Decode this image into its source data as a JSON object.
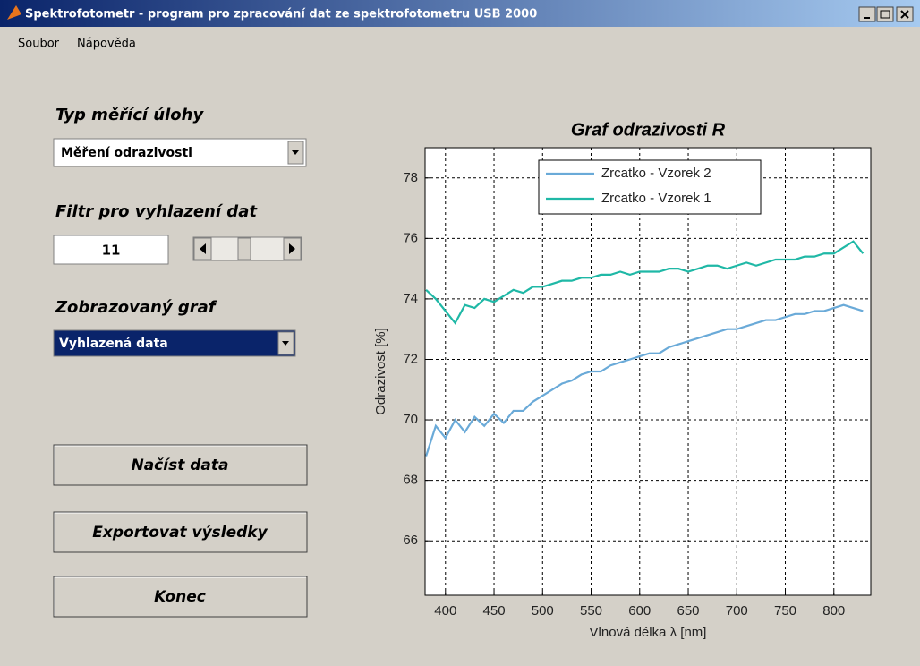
{
  "window": {
    "title": "Spektrofotometr - program pro zpracování dat ze spektrofotometru USB 2000"
  },
  "menu": [
    "Soubor",
    "Nápověda"
  ],
  "controls": {
    "task_label": "Typ měřící úlohy",
    "task_value": "Měření odrazivosti",
    "filter_label": "Filtr pro vyhlazení dat",
    "filter_value": "11",
    "graph_label": "Zobrazovaný graf",
    "graph_value": "Vyhlazená data",
    "buttons": [
      "Načíst data",
      "Exportovat výsledky",
      "Konec"
    ]
  },
  "chart_data": {
    "type": "line",
    "title": "Graf odrazivosti R",
    "x_label": "Vlnová délka λ [nm]",
    "y_label": "Odrazivost [%]",
    "x": [
      380,
      390,
      400,
      410,
      420,
      430,
      440,
      450,
      460,
      470,
      480,
      490,
      500,
      510,
      520,
      530,
      540,
      550,
      560,
      570,
      580,
      590,
      600,
      610,
      620,
      630,
      640,
      650,
      660,
      670,
      680,
      690,
      700,
      710,
      720,
      730,
      740,
      750,
      760,
      770,
      780,
      790,
      800,
      810,
      820,
      830
    ],
    "series": [
      {
        "name": "Zrcatko - Vzorek 2",
        "color": "#6aaad8",
        "values": [
          68.8,
          69.8,
          69.4,
          70.0,
          69.6,
          70.1,
          69.8,
          70.2,
          69.9,
          70.3,
          70.3,
          70.6,
          70.8,
          71.0,
          71.2,
          71.3,
          71.5,
          71.6,
          71.6,
          71.8,
          71.9,
          72.0,
          72.1,
          72.2,
          72.2,
          72.4,
          72.5,
          72.6,
          72.7,
          72.8,
          72.9,
          73.0,
          73.0,
          73.1,
          73.2,
          73.3,
          73.3,
          73.4,
          73.5,
          73.5,
          73.6,
          73.6,
          73.7,
          73.8,
          73.7,
          73.6
        ]
      },
      {
        "name": "Zrcatko - Vzorek 1",
        "color": "#1fb8a6",
        "values": [
          74.3,
          74.0,
          73.6,
          73.2,
          73.8,
          73.7,
          74.0,
          73.9,
          74.1,
          74.3,
          74.2,
          74.4,
          74.4,
          74.5,
          74.6,
          74.6,
          74.7,
          74.7,
          74.8,
          74.8,
          74.9,
          74.8,
          74.9,
          74.9,
          74.9,
          75.0,
          75.0,
          74.9,
          75.0,
          75.1,
          75.1,
          75.0,
          75.1,
          75.2,
          75.1,
          75.2,
          75.3,
          75.3,
          75.3,
          75.4,
          75.4,
          75.5,
          75.5,
          75.7,
          75.9,
          75.5
        ]
      }
    ],
    "xlim": [
      379,
      838
    ],
    "ylim": [
      64.2,
      79
    ],
    "xticks": [
      400,
      450,
      500,
      550,
      600,
      650,
      700,
      750,
      800
    ],
    "yticks": [
      66,
      68,
      70,
      72,
      74,
      76,
      78
    ],
    "grid": true,
    "legend": "north"
  }
}
